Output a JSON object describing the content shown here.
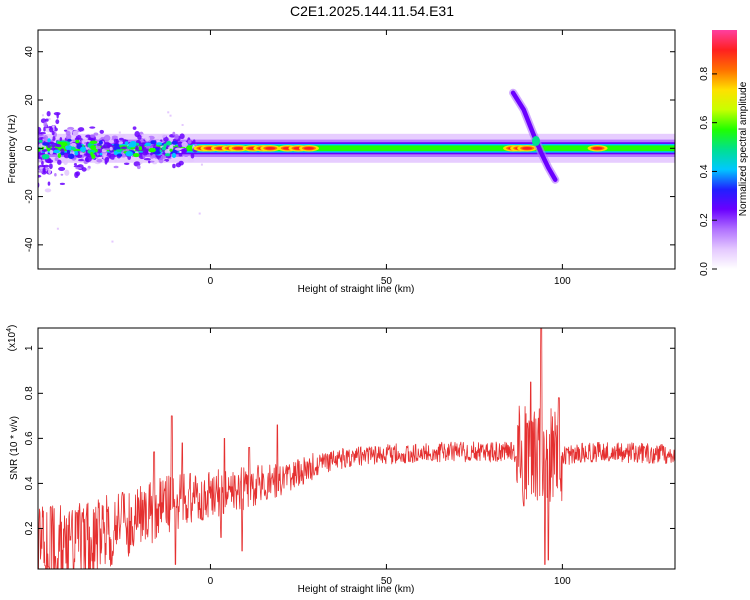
{
  "title": "C2E1.2025.144.11.54.E31",
  "colors": {
    "snr_line": "#e53030",
    "axis": "#000000",
    "background": "#ffffff",
    "colormap": [
      "#ffffff",
      "#e4c8ff",
      "#b070ff",
      "#6a00ff",
      "#2020ff",
      "#00c8ff",
      "#00e090",
      "#20ff00",
      "#c8ff00",
      "#ffe000",
      "#ff7000",
      "#ff2020",
      "#ff3fa0"
    ]
  },
  "chart_data": [
    {
      "type": "heatmap",
      "title": "C2E1.2025.144.11.54.E31",
      "xlabel": "Height of straight line (km)",
      "ylabel": "Frequency (Hz)",
      "xlim": [
        -49,
        132
      ],
      "ylim": [
        -50,
        49
      ],
      "x_ticks": [
        0,
        50,
        100
      ],
      "y_ticks": [
        -40,
        -20,
        0,
        20,
        40
      ],
      "colorbar": {
        "label": "Normalized spectral amplitude",
        "range": [
          0,
          0.98
        ],
        "ticks": [
          0.0,
          0.2,
          0.4,
          0.6,
          0.8
        ]
      },
      "ridge": {
        "frequency": 0,
        "x_start": -49,
        "x_end": 132,
        "peaks_x": [
          -2,
          0,
          3,
          6,
          8,
          12,
          15,
          17,
          22,
          25,
          28,
          86,
          88,
          90,
          110
        ],
        "doppler_streak": [
          {
            "x": 86,
            "y": 23
          },
          {
            "x": 89,
            "y": 16
          },
          {
            "x": 92,
            "y": 5
          },
          {
            "x": 94,
            "y": -2
          },
          {
            "x": 96,
            "y": -8
          },
          {
            "x": 98,
            "y": -13
          }
        ]
      },
      "grid": false
    },
    {
      "type": "line",
      "xlabel": "Height of straight line (km)",
      "ylabel": "SNR (10 * v/v)",
      "y_multiplier": "(x10",
      "y_multiplier_exp": "4",
      "y_multiplier_close": ")",
      "xlim": [
        -49,
        132
      ],
      "ylim": [
        0.02,
        1.09
      ],
      "x_ticks": [
        0,
        50,
        100
      ],
      "y_ticks": [
        0.2,
        0.4,
        0.6,
        0.8,
        1.0
      ],
      "series": [
        {
          "envelope": [
            {
              "x": -49,
              "y": 0.1
            },
            {
              "x": -40,
              "y": 0.12
            },
            {
              "x": -30,
              "y": 0.18
            },
            {
              "x": -20,
              "y": 0.25
            },
            {
              "x": -10,
              "y": 0.32
            },
            {
              "x": 0,
              "y": 0.35
            },
            {
              "x": 10,
              "y": 0.38
            },
            {
              "x": 20,
              "y": 0.42
            },
            {
              "x": 30,
              "y": 0.48
            },
            {
              "x": 40,
              "y": 0.52
            },
            {
              "x": 50,
              "y": 0.53
            },
            {
              "x": 70,
              "y": 0.54
            },
            {
              "x": 88,
              "y": 0.54
            },
            {
              "x": 96,
              "y": 0.52
            },
            {
              "x": 110,
              "y": 0.54
            },
            {
              "x": 132,
              "y": 0.53
            }
          ],
          "spikes": [
            {
              "x": -38,
              "y": 0.27
            },
            {
              "x": -25,
              "y": 0.36
            },
            {
              "x": -16,
              "y": 0.54
            },
            {
              "x": -11,
              "y": 0.7
            },
            {
              "x": -8,
              "y": 0.58
            },
            {
              "x": 4,
              "y": 0.6
            },
            {
              "x": 11,
              "y": 0.56
            },
            {
              "x": 19,
              "y": 0.66
            },
            {
              "x": 89,
              "y": 0.88
            },
            {
              "x": 91,
              "y": 0.85
            },
            {
              "x": 94,
              "y": 1.09
            },
            {
              "x": 96,
              "y": 0.9
            },
            {
              "x": 99,
              "y": 0.78
            }
          ],
          "dips": [
            {
              "x": -46,
              "y": 0.03
            },
            {
              "x": -28,
              "y": 0.04
            },
            {
              "x": -10,
              "y": 0.04
            },
            {
              "x": 3,
              "y": 0.16
            },
            {
              "x": 9,
              "y": 0.1
            },
            {
              "x": 89,
              "y": 0.3
            },
            {
              "x": 95,
              "y": 0.04
            },
            {
              "x": 96,
              "y": 0.06
            }
          ]
        }
      ],
      "grid": false
    }
  ]
}
